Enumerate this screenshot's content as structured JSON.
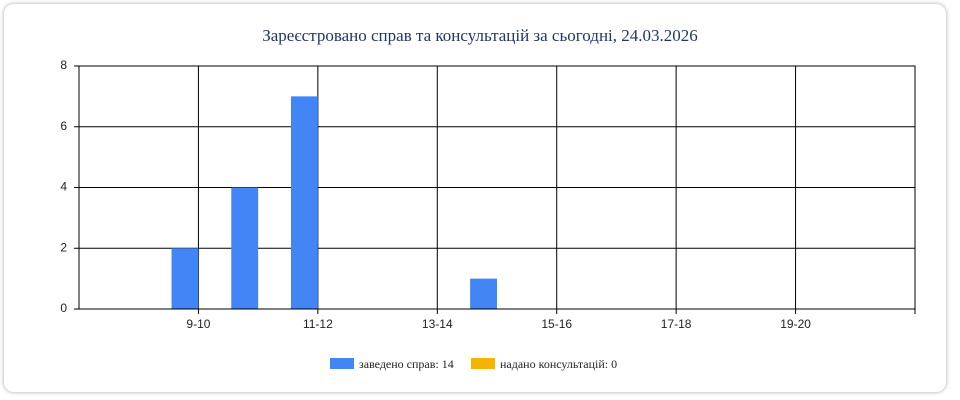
{
  "chart_data": {
    "type": "bar",
    "title": "Зареєстровано справ та консультацій за сьогодні, 24.03.2026",
    "categories": [
      null,
      "9-10",
      null,
      "11-12",
      null,
      "13-14",
      null,
      "15-16",
      null,
      "17-18",
      null,
      "19-20",
      null,
      null
    ],
    "series": [
      {
        "name": "заведено справ: 14",
        "color": "#4285f4",
        "values": [
          0,
          2,
          4,
          7,
          0,
          0,
          1,
          0,
          0,
          0,
          0,
          0,
          0,
          0
        ]
      },
      {
        "name": "надано консультацій: 0",
        "color": "#f4b400",
        "values": [
          0,
          0,
          0,
          0,
          0,
          0,
          0,
          0,
          0,
          0,
          0,
          0,
          0,
          0
        ]
      }
    ],
    "ylim": [
      0,
      8
    ],
    "yticks": [
      0,
      2,
      4,
      6,
      8
    ],
    "grid": true,
    "legend": "bottom"
  }
}
